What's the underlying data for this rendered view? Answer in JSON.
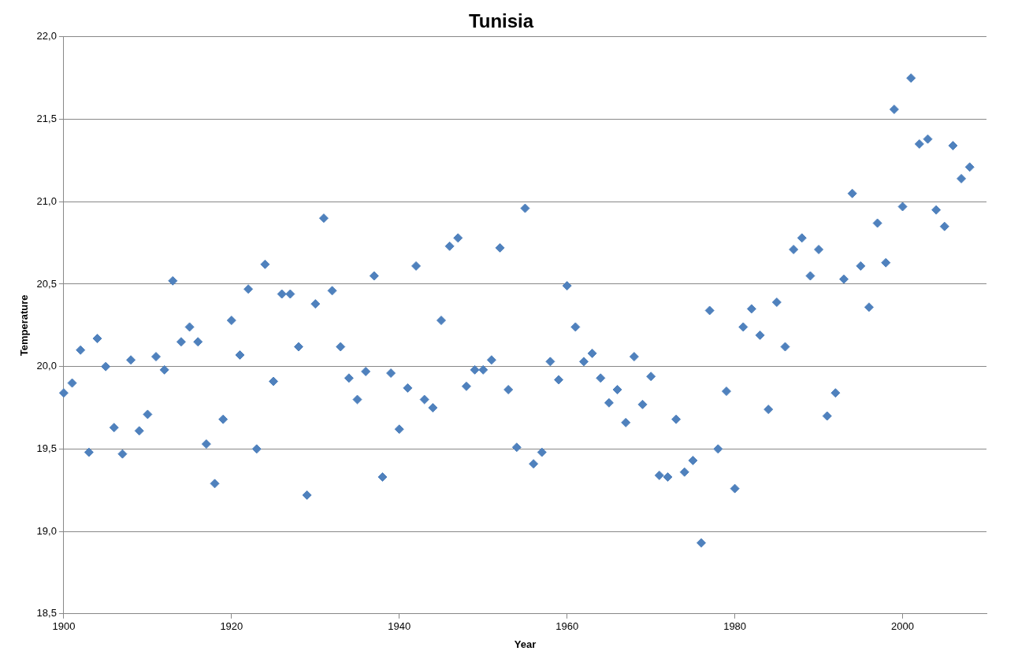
{
  "chart_data": {
    "type": "scatter",
    "title": "Tunisia",
    "xlabel": "Year",
    "ylabel": "Temperature",
    "x": [
      1900,
      1901,
      1902,
      1903,
      1904,
      1905,
      1906,
      1907,
      1908,
      1909,
      1910,
      1911,
      1912,
      1913,
      1914,
      1915,
      1916,
      1917,
      1918,
      1919,
      1920,
      1921,
      1922,
      1923,
      1924,
      1925,
      1926,
      1927,
      1928,
      1929,
      1930,
      1931,
      1932,
      1933,
      1934,
      1935,
      1936,
      1937,
      1938,
      1939,
      1940,
      1941,
      1942,
      1943,
      1944,
      1945,
      1946,
      1947,
      1948,
      1949,
      1950,
      1951,
      1952,
      1953,
      1954,
      1955,
      1956,
      1957,
      1958,
      1959,
      1960,
      1961,
      1962,
      1963,
      1964,
      1965,
      1966,
      1967,
      1968,
      1969,
      1970,
      1971,
      1972,
      1973,
      1974,
      1975,
      1976,
      1977,
      1978,
      1979,
      1980,
      1981,
      1982,
      1983,
      1984,
      1985,
      1986,
      1987,
      1988,
      1989,
      1990,
      1991,
      1992,
      1993,
      1994,
      1995,
      1996,
      1997,
      1998,
      1999,
      2000,
      2001,
      2002,
      2003,
      2004,
      2005,
      2006,
      2007,
      2008
    ],
    "series": [
      {
        "color": "#4f81bd",
        "values": [
          19.84,
          19.9,
          20.1,
          19.48,
          20.17,
          20.0,
          19.63,
          19.47,
          20.04,
          19.61,
          19.71,
          20.06,
          19.98,
          20.52,
          20.15,
          20.24,
          20.15,
          19.53,
          19.29,
          19.68,
          20.28,
          20.07,
          20.47,
          19.5,
          20.62,
          19.91,
          20.44,
          20.44,
          20.12,
          19.22,
          20.38,
          20.9,
          20.46,
          20.12,
          19.93,
          19.8,
          19.97,
          20.55,
          19.33,
          19.96,
          19.62,
          19.87,
          20.61,
          19.8,
          19.75,
          20.28,
          20.73,
          20.78,
          19.88,
          19.98,
          19.98,
          20.04,
          20.72,
          19.86,
          19.51,
          20.96,
          19.41,
          19.48,
          20.03,
          19.92,
          20.49,
          20.24,
          20.03,
          20.08,
          19.93,
          19.78,
          19.86,
          19.66,
          20.06,
          19.77,
          19.94,
          19.34,
          19.33,
          19.68,
          19.36,
          19.43,
          18.93,
          20.34,
          19.5,
          19.85,
          19.26,
          20.24,
          20.35,
          20.19,
          19.74,
          20.39,
          20.12,
          20.71,
          20.78,
          20.55,
          20.71,
          19.7,
          19.84,
          20.53,
          21.05,
          20.61,
          20.36,
          20.87,
          20.63,
          21.56,
          20.97,
          21.75,
          21.35,
          21.38,
          20.95,
          20.85,
          21.34,
          21.14,
          21.21
        ]
      }
    ],
    "xlim": [
      1900,
      2010
    ],
    "xticks": [
      1900,
      1920,
      1940,
      1960,
      1980,
      2000
    ],
    "ylim": [
      18.5,
      22
    ],
    "yticks": [
      {
        "value": 18.5,
        "label": "18,5"
      },
      {
        "value": 19,
        "label": "19,0"
      },
      {
        "value": 19.5,
        "label": "19,5"
      },
      {
        "value": 20,
        "label": "20,0"
      },
      {
        "value": 20.5,
        "label": "20,5"
      },
      {
        "value": 21,
        "label": "21,0"
      },
      {
        "value": 21.5,
        "label": "21,5"
      },
      {
        "value": 22,
        "label": "22,0"
      }
    ],
    "grid": "y",
    "marker": "diamond",
    "legend": false
  }
}
